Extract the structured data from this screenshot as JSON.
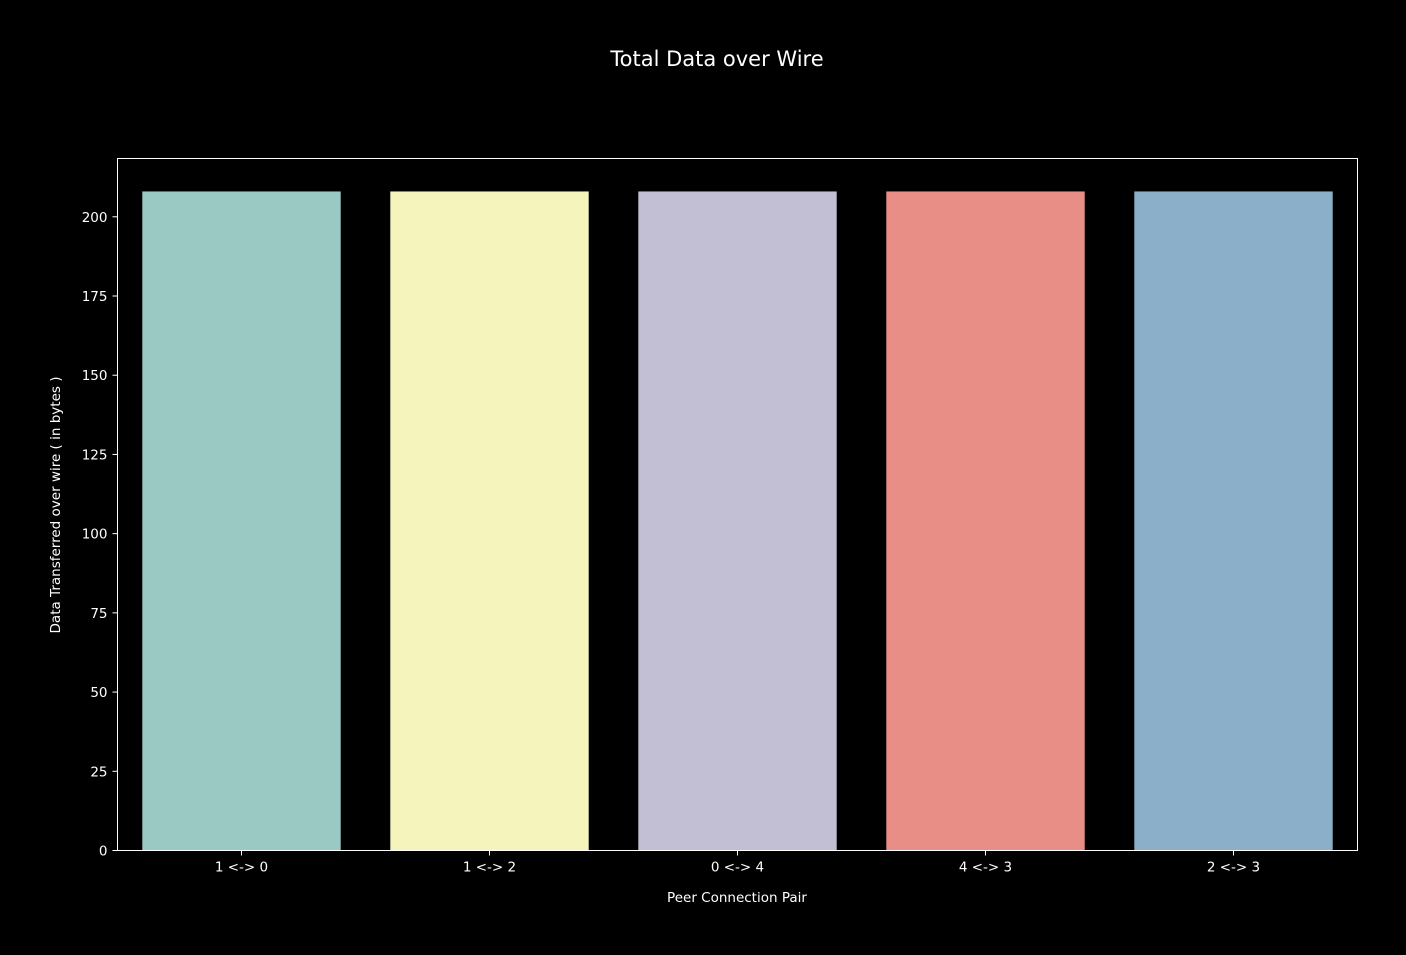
{
  "chart_data": {
    "type": "bar",
    "title": "Total Data over Wire",
    "xlabel": "Peer Connection Pair",
    "ylabel": "Data Transferred over wire ( in bytes )",
    "categories": [
      "1 <-> 0",
      "1 <-> 2",
      "0 <-> 4",
      "4 <-> 3",
      "2 <-> 3"
    ],
    "values": [
      208,
      208,
      208,
      208,
      208
    ],
    "colors": [
      "#99c9c2",
      "#f5f4bc",
      "#c2bfd5",
      "#e88e86",
      "#8cafc9"
    ],
    "ylim": [
      0,
      218.4
    ],
    "yticks": [
      0,
      25,
      50,
      75,
      100,
      125,
      150,
      175,
      200
    ],
    "grid": false,
    "legend": false,
    "background": "#000000",
    "foreground": "#ffffff"
  }
}
